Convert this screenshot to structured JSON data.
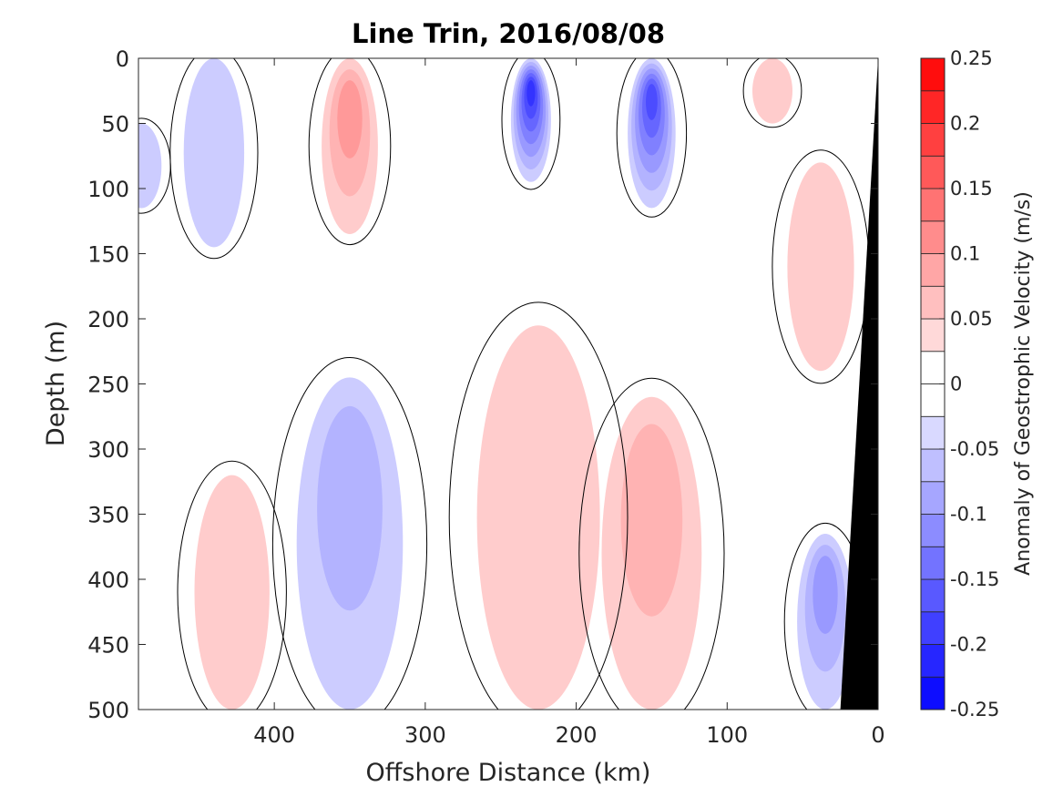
{
  "chart_data": {
    "type": "heatmap",
    "title": "Line Trin, 2016/08/08",
    "xlabel": "Offshore Distance (km)",
    "ylabel": "Depth (m)",
    "xlim": [
      490,
      0
    ],
    "ylim": [
      0,
      500
    ],
    "x_ticks": [
      400,
      300,
      200,
      100,
      0
    ],
    "y_ticks": [
      0,
      50,
      100,
      150,
      200,
      250,
      300,
      350,
      400,
      450,
      500
    ],
    "colorbar": {
      "label": "Anomaly of Geostrophic Velocity (m/s)",
      "range": [
        -0.25,
        0.25
      ],
      "levels": [
        -0.25,
        -0.225,
        -0.2,
        -0.175,
        -0.15,
        -0.125,
        -0.1,
        -0.075,
        -0.05,
        -0.025,
        0,
        0.025,
        0.05,
        0.075,
        0.1,
        0.125,
        0.15,
        0.175,
        0.2,
        0.225,
        0.25
      ],
      "tick_values": [
        0.25,
        0.2,
        0.15,
        0.1,
        0.05,
        0,
        -0.05,
        -0.1,
        -0.15,
        -0.2,
        -0.25
      ],
      "tick_labels": [
        "0.25",
        "0.2",
        "0.15",
        "0.1",
        "0.05",
        "0",
        "-0.05",
        "-0.1",
        "-0.15",
        "-0.2",
        "-0.25"
      ],
      "colormap": "blue-white-red",
      "negative_color": "#0000ff",
      "positive_color": "#ff0000"
    },
    "features": [
      {
        "kind": "anomaly",
        "sign": "positive",
        "x_center": 350,
        "depth_range": [
          0,
          135
        ],
        "peak": 0.1
      },
      {
        "kind": "anomaly",
        "sign": "negative",
        "x_center": 230,
        "depth_range": [
          0,
          95
        ],
        "peak": -0.2
      },
      {
        "kind": "anomaly",
        "sign": "negative",
        "x_center": 150,
        "depth_range": [
          0,
          115
        ],
        "peak": -0.175
      },
      {
        "kind": "anomaly",
        "sign": "negative",
        "x_center": 440,
        "depth_range": [
          0,
          145
        ],
        "peak": -0.05
      },
      {
        "kind": "anomaly",
        "sign": "negative",
        "x_center": 488,
        "depth_range": [
          50,
          115
        ],
        "peak": -0.05
      },
      {
        "kind": "anomaly",
        "sign": "positive",
        "x_center": 70,
        "depth_range": [
          0,
          50
        ],
        "peak": 0.05
      },
      {
        "kind": "anomaly",
        "sign": "positive",
        "x_center": 38,
        "depth_range": [
          80,
          240
        ],
        "peak": 0.05
      },
      {
        "kind": "anomaly",
        "sign": "negative",
        "x_center": 350,
        "depth_range": [
          245,
          500
        ],
        "peak": -0.075
      },
      {
        "kind": "anomaly",
        "sign": "positive",
        "x_center": 225,
        "depth_range": [
          205,
          500
        ],
        "peak": 0.05
      },
      {
        "kind": "anomaly",
        "sign": "positive",
        "x_center": 150,
        "depth_range": [
          260,
          500
        ],
        "peak": 0.075
      },
      {
        "kind": "anomaly",
        "sign": "positive",
        "x_center": 428,
        "depth_range": [
          320,
          500
        ],
        "peak": 0.05
      },
      {
        "kind": "anomaly",
        "sign": "negative",
        "x_center": 35,
        "depth_range": [
          365,
          500
        ],
        "peak": -0.1
      },
      {
        "kind": "bathymetry",
        "note": "seafloor wedge at the coast",
        "surface_x": 0,
        "bottom_x": 25
      }
    ]
  }
}
